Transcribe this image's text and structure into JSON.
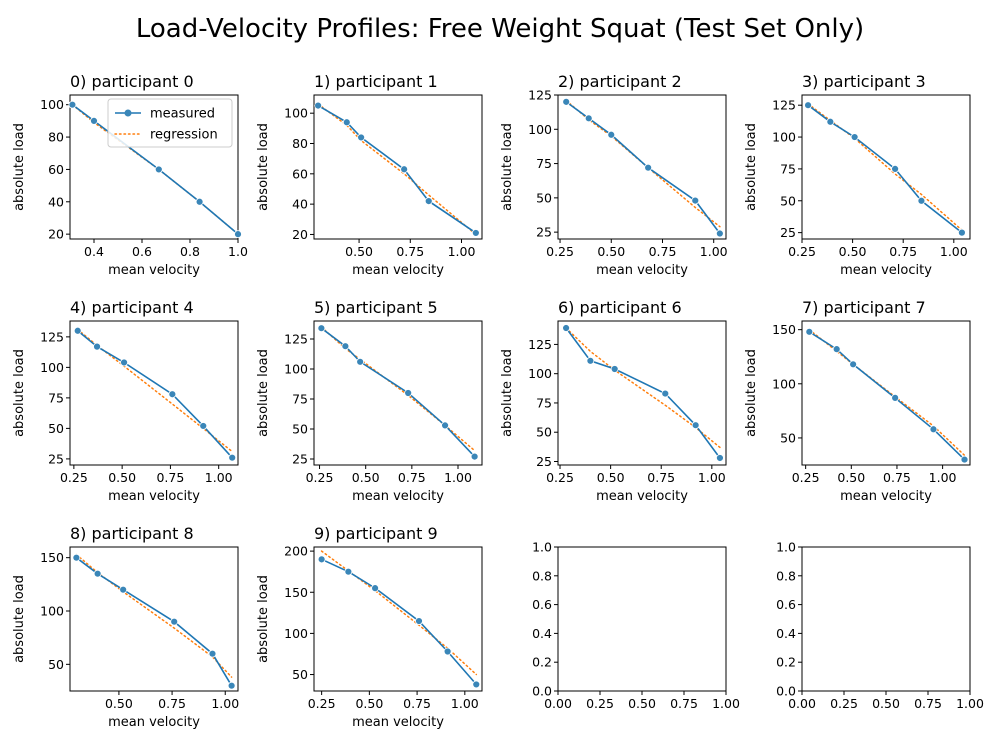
{
  "figure": {
    "suptitle": "Load-Velocity Profiles: Free Weight Squat (Test Set Only)"
  },
  "colors": {
    "measured": "#1f77b4",
    "regression": "#ff7f0e",
    "marker": "#3a86b8"
  },
  "legend": {
    "measured": "measured",
    "regression": "regression"
  },
  "chart_data": [
    {
      "type": "line",
      "title": "0) participant 0",
      "xlabel": "mean velocity",
      "ylabel": "absolute load",
      "xlim": [
        0.3,
        1.0
      ],
      "ylim": [
        17,
        106
      ],
      "xticks": [
        0.4,
        0.6,
        0.8,
        1.0
      ],
      "xtick_labels": [
        "0.4",
        "0.6",
        "0.8",
        "1.0"
      ],
      "yticks": [
        20,
        40,
        60,
        80,
        100
      ],
      "ytick_labels": [
        "20",
        "40",
        "60",
        "80",
        "100"
      ],
      "legend": "top-right",
      "series": [
        {
          "name": "measured",
          "style": "solid-marker",
          "x": [
            0.31,
            0.4,
            0.67,
            0.84,
            1.0
          ],
          "y": [
            100,
            90,
            60,
            40,
            20
          ]
        },
        {
          "name": "regression",
          "style": "dotted",
          "x": [
            0.31,
            0.4,
            0.67,
            0.84,
            1.0
          ],
          "y": [
            100,
            89,
            60,
            40,
            20
          ]
        }
      ]
    },
    {
      "type": "line",
      "title": "1) participant 1",
      "xlabel": "mean velocity",
      "ylabel": "absolute load",
      "xlim": [
        0.28,
        1.1
      ],
      "ylim": [
        17,
        112
      ],
      "xticks": [
        0.5,
        0.75,
        1.0
      ],
      "xtick_labels": [
        "0.50",
        "0.75",
        "1.00"
      ],
      "yticks": [
        20,
        40,
        60,
        80,
        100
      ],
      "ytick_labels": [
        "20",
        "40",
        "60",
        "80",
        "100"
      ],
      "series": [
        {
          "name": "measured",
          "style": "solid-marker",
          "x": [
            0.3,
            0.44,
            0.51,
            0.72,
            0.84,
            1.07
          ],
          "y": [
            105,
            94,
            84,
            63,
            42,
            21
          ]
        },
        {
          "name": "regression",
          "style": "dotted",
          "x": [
            0.3,
            0.44,
            0.51,
            0.72,
            0.84,
            1.07
          ],
          "y": [
            106,
            92,
            82,
            60,
            46,
            20
          ]
        }
      ]
    },
    {
      "type": "line",
      "title": "2) participant 2",
      "xlabel": "mean velocity",
      "ylabel": "absolute load",
      "xlim": [
        0.24,
        1.06
      ],
      "ylim": [
        20,
        125
      ],
      "xticks": [
        0.25,
        0.5,
        0.75,
        1.0
      ],
      "xtick_labels": [
        "0.25",
        "0.50",
        "0.75",
        "1.00"
      ],
      "yticks": [
        25,
        50,
        75,
        100,
        125
      ],
      "ytick_labels": [
        "25",
        "50",
        "75",
        "100",
        "125"
      ],
      "series": [
        {
          "name": "measured",
          "style": "solid-marker",
          "x": [
            0.28,
            0.39,
            0.5,
            0.68,
            0.91,
            1.03
          ],
          "y": [
            120,
            108,
            96,
            72,
            48,
            24
          ]
        },
        {
          "name": "regression",
          "style": "dotted",
          "x": [
            0.28,
            0.39,
            0.5,
            0.68,
            0.91,
            1.03
          ],
          "y": [
            121,
            107,
            95,
            72,
            43,
            29
          ]
        }
      ]
    },
    {
      "type": "line",
      "title": "3) participant 3",
      "xlabel": "mean velocity",
      "ylabel": "absolute load",
      "xlim": [
        0.25,
        1.08
      ],
      "ylim": [
        20,
        133
      ],
      "xticks": [
        0.25,
        0.5,
        0.75,
        1.0
      ],
      "xtick_labels": [
        "0.25",
        "0.50",
        "0.75",
        "1.00"
      ],
      "yticks": [
        25,
        50,
        75,
        100,
        125
      ],
      "ytick_labels": [
        "25",
        "50",
        "75",
        "100",
        "125"
      ],
      "series": [
        {
          "name": "measured",
          "style": "solid-marker",
          "x": [
            0.28,
            0.39,
            0.51,
            0.71,
            0.84,
            1.04
          ],
          "y": [
            125,
            112,
            100,
            75,
            50,
            25
          ]
        },
        {
          "name": "regression",
          "style": "dotted",
          "x": [
            0.28,
            0.39,
            0.51,
            0.71,
            0.84,
            1.04
          ],
          "y": [
            126,
            113,
            99,
            71,
            55,
            27
          ]
        }
      ]
    },
    {
      "type": "line",
      "title": "4) participant 4",
      "xlabel": "mean velocity",
      "ylabel": "absolute load",
      "xlim": [
        0.23,
        1.1
      ],
      "ylim": [
        20,
        138
      ],
      "xticks": [
        0.25,
        0.5,
        0.75,
        1.0
      ],
      "xtick_labels": [
        "0.25",
        "0.50",
        "0.75",
        "1.00"
      ],
      "yticks": [
        25,
        50,
        75,
        100,
        125
      ],
      "ytick_labels": [
        "25",
        "50",
        "75",
        "100",
        "125"
      ],
      "series": [
        {
          "name": "measured",
          "style": "solid-marker",
          "x": [
            0.27,
            0.37,
            0.51,
            0.76,
            0.92,
            1.07
          ],
          "y": [
            130,
            117,
            104,
            78,
            52,
            26
          ]
        },
        {
          "name": "regression",
          "style": "dotted",
          "x": [
            0.27,
            0.37,
            0.51,
            0.76,
            0.92,
            1.07
          ],
          "y": [
            131,
            118,
            101,
            70,
            50,
            31
          ]
        }
      ]
    },
    {
      "type": "line",
      "title": "5) participant 5",
      "xlabel": "mean velocity",
      "ylabel": "absolute load",
      "xlim": [
        0.22,
        1.13
      ],
      "ylim": [
        20,
        140
      ],
      "xticks": [
        0.25,
        0.5,
        0.75,
        1.0
      ],
      "xtick_labels": [
        "0.25",
        "0.50",
        "0.75",
        "1.00"
      ],
      "yticks": [
        25,
        50,
        75,
        100,
        125
      ],
      "ytick_labels": [
        "25",
        "50",
        "75",
        "100",
        "125"
      ],
      "series": [
        {
          "name": "measured",
          "style": "solid-marker",
          "x": [
            0.26,
            0.39,
            0.47,
            0.73,
            0.93,
            1.09
          ],
          "y": [
            134,
            119,
            106,
            80,
            53,
            27
          ]
        },
        {
          "name": "regression",
          "style": "dotted",
          "x": [
            0.26,
            0.39,
            0.47,
            0.73,
            0.93,
            1.09
          ],
          "y": [
            135,
            117,
            108,
            78,
            53,
            32
          ]
        }
      ]
    },
    {
      "type": "line",
      "title": "6) participant 6",
      "xlabel": "mean velocity",
      "ylabel": "absolute load",
      "xlim": [
        0.24,
        1.07
      ],
      "ylim": [
        22,
        145
      ],
      "xticks": [
        0.25,
        0.5,
        0.75,
        1.0
      ],
      "xtick_labels": [
        "0.25",
        "0.50",
        "0.75",
        "1.00"
      ],
      "yticks": [
        25,
        50,
        75,
        100,
        125
      ],
      "ytick_labels": [
        "25",
        "50",
        "75",
        "100",
        "125"
      ],
      "series": [
        {
          "name": "measured",
          "style": "solid-marker",
          "x": [
            0.28,
            0.4,
            0.52,
            0.77,
            0.92,
            1.04
          ],
          "y": [
            139,
            111,
            104,
            83,
            56,
            28
          ]
        },
        {
          "name": "regression",
          "style": "dotted",
          "x": [
            0.28,
            0.4,
            0.52,
            0.77,
            0.92,
            1.04
          ],
          "y": [
            139,
            119,
            103,
            73,
            54,
            37
          ]
        }
      ]
    },
    {
      "type": "line",
      "title": "7) participant 7",
      "xlabel": "mean velocity",
      "ylabel": "absolute load",
      "xlim": [
        0.23,
        1.15
      ],
      "ylim": [
        25,
        158
      ],
      "xticks": [
        0.25,
        0.5,
        0.75,
        1.0
      ],
      "xtick_labels": [
        "0.25",
        "0.50",
        "0.75",
        "1.00"
      ],
      "yticks": [
        50,
        100,
        150
      ],
      "ytick_labels": [
        "50",
        "100",
        "150"
      ],
      "series": [
        {
          "name": "measured",
          "style": "solid-marker",
          "x": [
            0.27,
            0.42,
            0.51,
            0.74,
            0.95,
            1.12
          ],
          "y": [
            148,
            132,
            118,
            87,
            58,
            30
          ]
        },
        {
          "name": "regression",
          "style": "dotted",
          "x": [
            0.27,
            0.42,
            0.51,
            0.74,
            0.95,
            1.12
          ],
          "y": [
            150,
            130,
            118,
            88,
            61,
            34
          ]
        }
      ]
    },
    {
      "type": "line",
      "title": "8) participant 8",
      "xlabel": "mean velocity",
      "ylabel": "absolute load",
      "xlim": [
        0.27,
        1.06
      ],
      "ylim": [
        25,
        160
      ],
      "xticks": [
        0.5,
        0.75,
        1.0
      ],
      "xtick_labels": [
        "0.50",
        "0.75",
        "1.00"
      ],
      "yticks": [
        50,
        100,
        150
      ],
      "ytick_labels": [
        "50",
        "100",
        "150"
      ],
      "series": [
        {
          "name": "measured",
          "style": "solid-marker",
          "x": [
            0.3,
            0.4,
            0.52,
            0.76,
            0.94,
            1.03
          ],
          "y": [
            150,
            135,
            120,
            90,
            60,
            30
          ]
        },
        {
          "name": "regression",
          "style": "dotted",
          "x": [
            0.3,
            0.4,
            0.52,
            0.76,
            0.94,
            1.03
          ],
          "y": [
            153,
            136,
            118,
            84,
            57,
            38
          ]
        }
      ]
    },
    {
      "type": "line",
      "title": "9) participant 9",
      "xlabel": "mean velocity",
      "ylabel": "absolute load",
      "xlim": [
        0.21,
        1.09
      ],
      "ylim": [
        30,
        205
      ],
      "xticks": [
        0.25,
        0.5,
        0.75,
        1.0
      ],
      "xtick_labels": [
        "0.25",
        "0.50",
        "0.75",
        "1.00"
      ],
      "yticks": [
        50,
        100,
        150,
        200
      ],
      "ytick_labels": [
        "50",
        "100",
        "150",
        "200"
      ],
      "series": [
        {
          "name": "measured",
          "style": "solid-marker",
          "x": [
            0.25,
            0.39,
            0.53,
            0.76,
            0.91,
            1.06
          ],
          "y": [
            190,
            175,
            155,
            115,
            78,
            38
          ]
        },
        {
          "name": "regression",
          "style": "dotted",
          "x": [
            0.25,
            0.39,
            0.53,
            0.76,
            0.91,
            1.06
          ],
          "y": [
            200,
            176,
            152,
            110,
            82,
            50
          ]
        }
      ]
    },
    {
      "type": "line",
      "title": "",
      "xlabel": "",
      "ylabel": "",
      "xlim": [
        0,
        1
      ],
      "ylim": [
        0,
        1
      ],
      "xticks": [
        0,
        0.25,
        0.5,
        0.75,
        1.0
      ],
      "xtick_labels": [
        "0.00",
        "0.25",
        "0.50",
        "0.75",
        "1.00"
      ],
      "yticks": [
        0,
        0.2,
        0.4,
        0.6,
        0.8,
        1.0
      ],
      "ytick_labels": [
        "0.0",
        "0.2",
        "0.4",
        "0.6",
        "0.8",
        "1.0"
      ],
      "series": []
    },
    {
      "type": "line",
      "title": "",
      "xlabel": "",
      "ylabel": "",
      "xlim": [
        0,
        1
      ],
      "ylim": [
        0,
        1
      ],
      "xticks": [
        0,
        0.25,
        0.5,
        0.75,
        1.0
      ],
      "xtick_labels": [
        "0.00",
        "0.25",
        "0.50",
        "0.75",
        "1.00"
      ],
      "yticks": [
        0,
        0.2,
        0.4,
        0.6,
        0.8,
        1.0
      ],
      "ytick_labels": [
        "0.0",
        "0.2",
        "0.4",
        "0.6",
        "0.8",
        "1.0"
      ],
      "series": []
    }
  ]
}
